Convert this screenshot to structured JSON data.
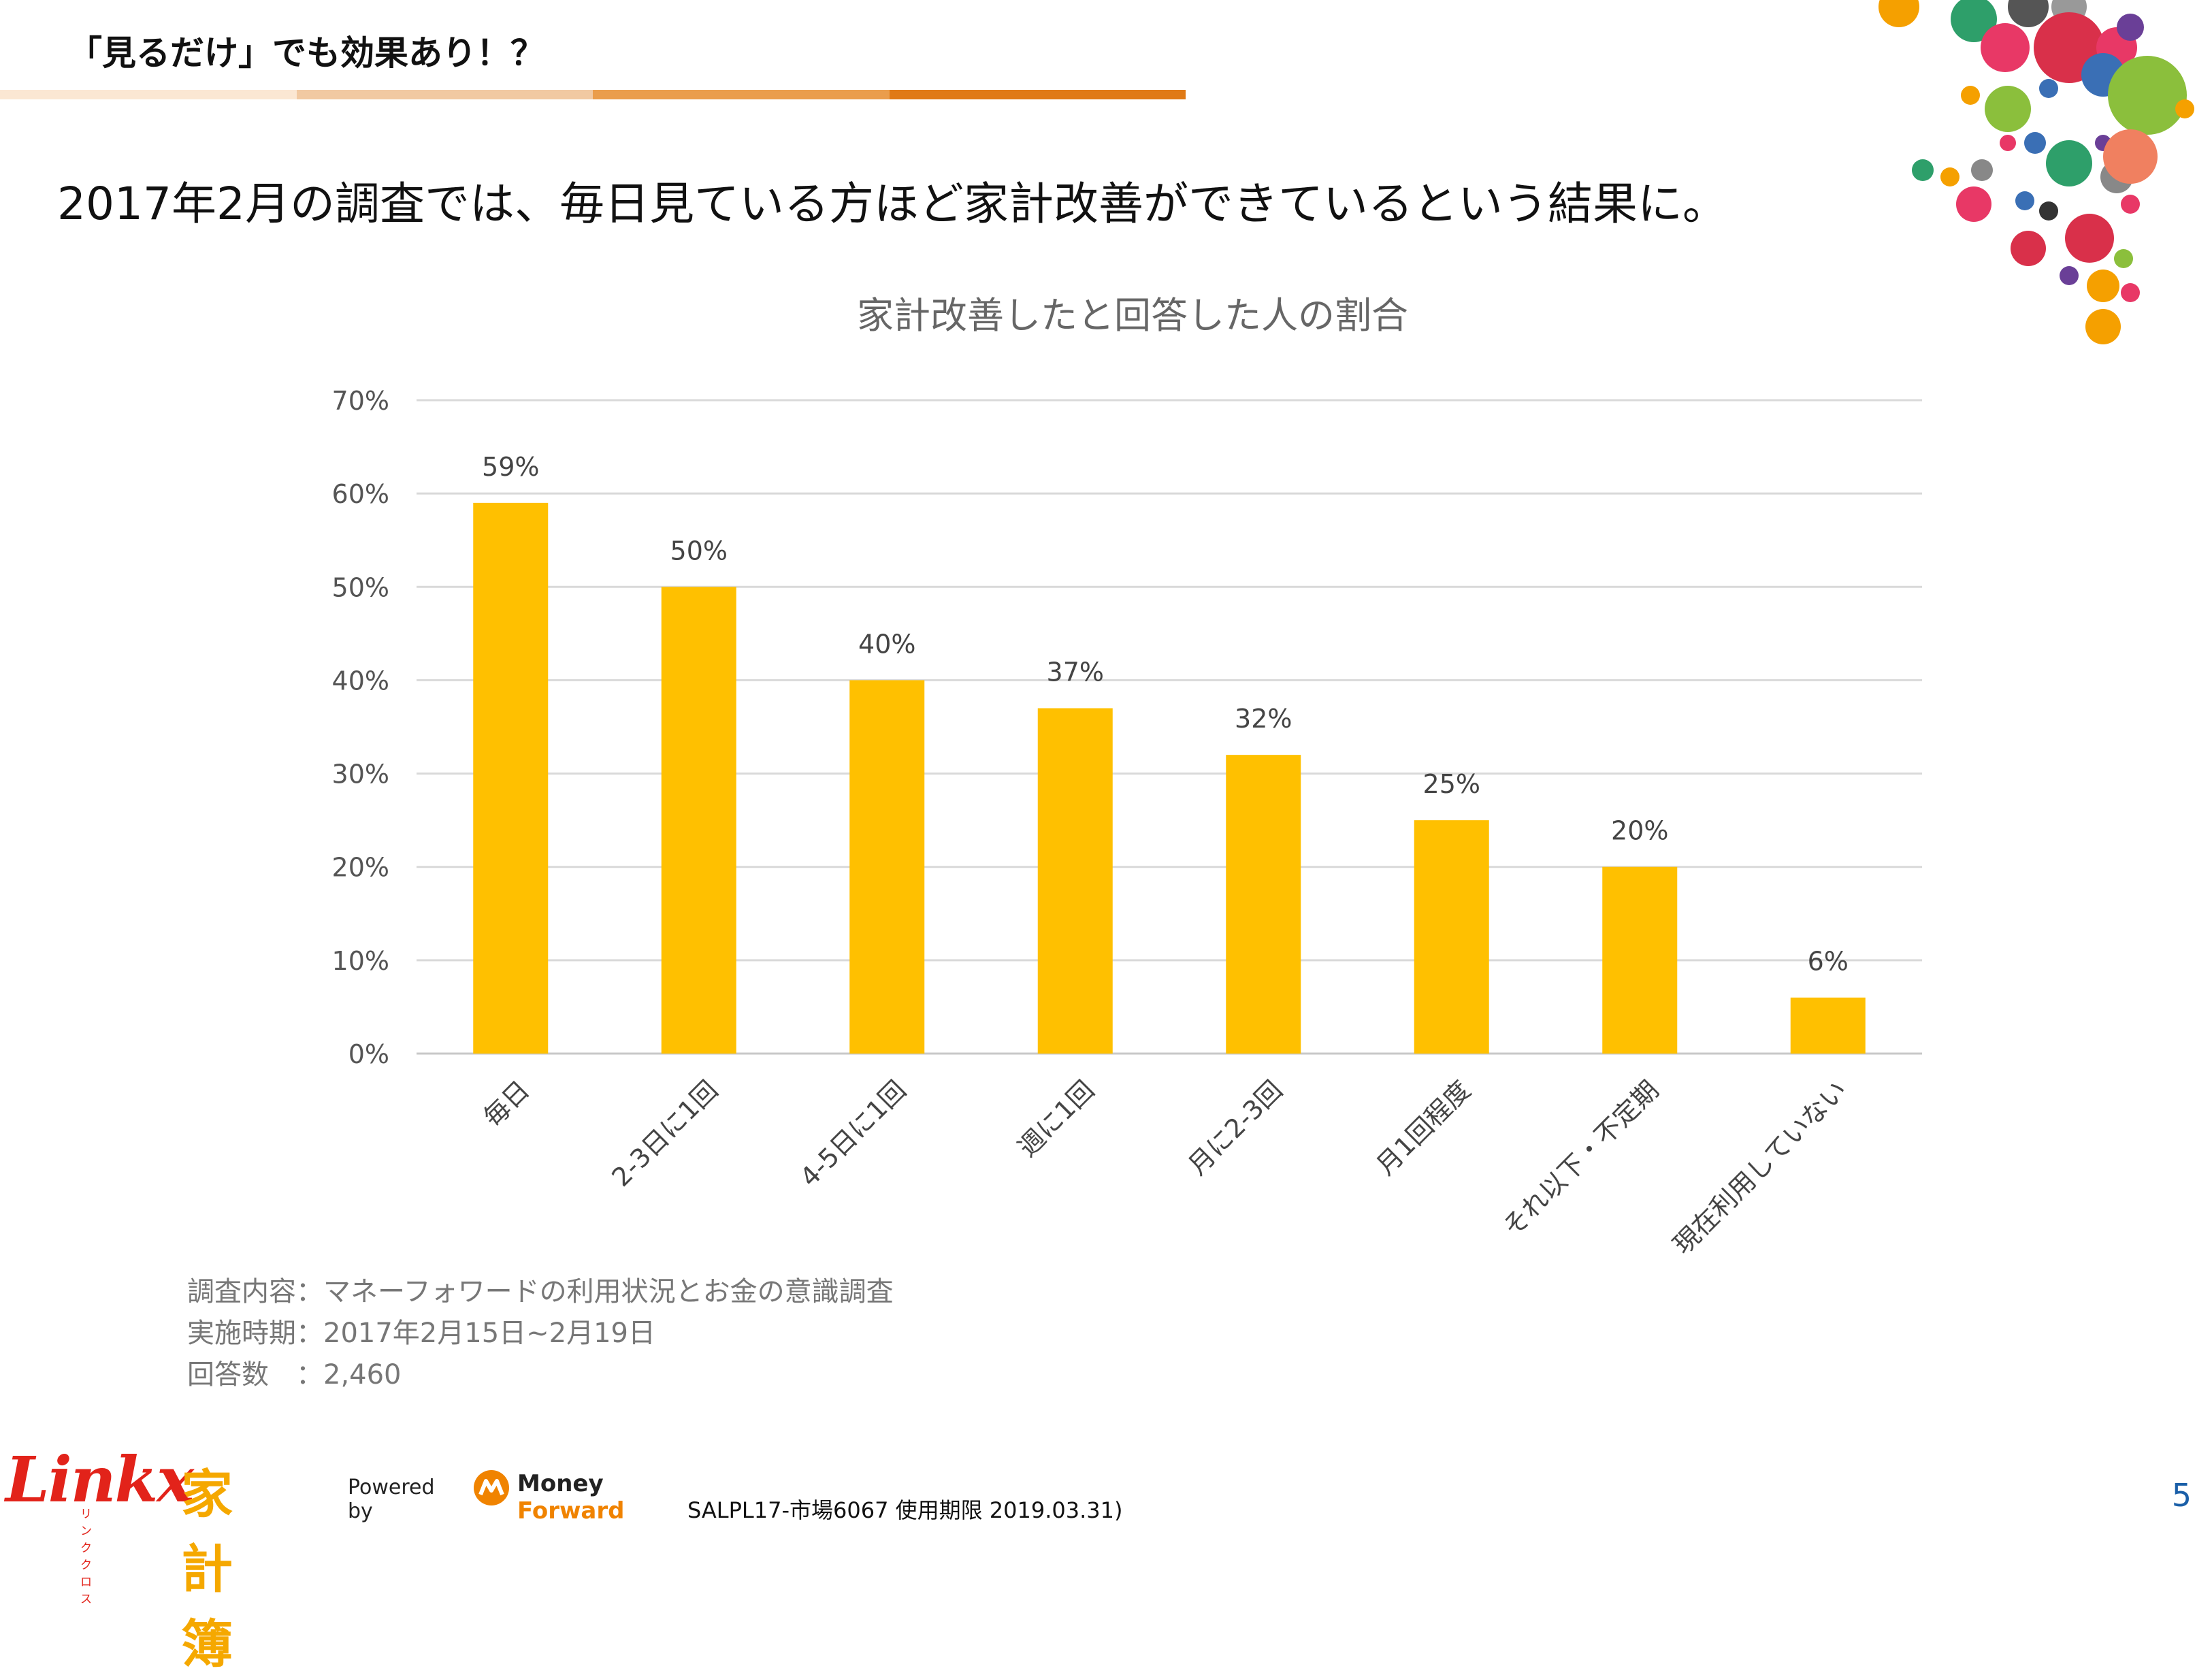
{
  "slide": {
    "title": "「見るだけ」でも効果あり！？",
    "headline": "2017年2月の調査では、毎日見ている方ほど家計改善ができているという結果に。",
    "page_number": "5",
    "footer_code": "SALPL17-市場6067 使用期限 2019.03.31)",
    "title_bar_colors": [
      "#fbe7d3",
      "#f1c9a2",
      "#ea9d4c",
      "#e07a16"
    ]
  },
  "notes": [
    "調査内容：マネーフォワードの利用状況とお金の意識調査",
    "実施時期：2017年2月15日~2月19日",
    "回答数　：2,460"
  ],
  "branding": {
    "linkx": "Linkx",
    "linkx_sub": "リンククロス",
    "kakeibo": "家計簿",
    "powered_by": "Powered by",
    "mf_money": "Money",
    "mf_forward": "Forward"
  },
  "chart_data": {
    "type": "bar",
    "title": "家計改善したと回答した人の割合",
    "categories": [
      "毎日",
      "2-3日に1回",
      "4-5日に1回",
      "週に1回",
      "月に2-3回",
      "月1回程度",
      "それ以下・不定期",
      "現在利用していない"
    ],
    "values": [
      59,
      50,
      40,
      37,
      32,
      25,
      20,
      6
    ],
    "value_labels": [
      "59%",
      "50%",
      "40%",
      "37%",
      "32%",
      "25%",
      "20%",
      "6%"
    ],
    "yticks": [
      "0%",
      "10%",
      "20%",
      "30%",
      "40%",
      "50%",
      "60%",
      "70%"
    ],
    "ylim": [
      0,
      70
    ],
    "bar_color": "#ffc000",
    "grid": true
  }
}
